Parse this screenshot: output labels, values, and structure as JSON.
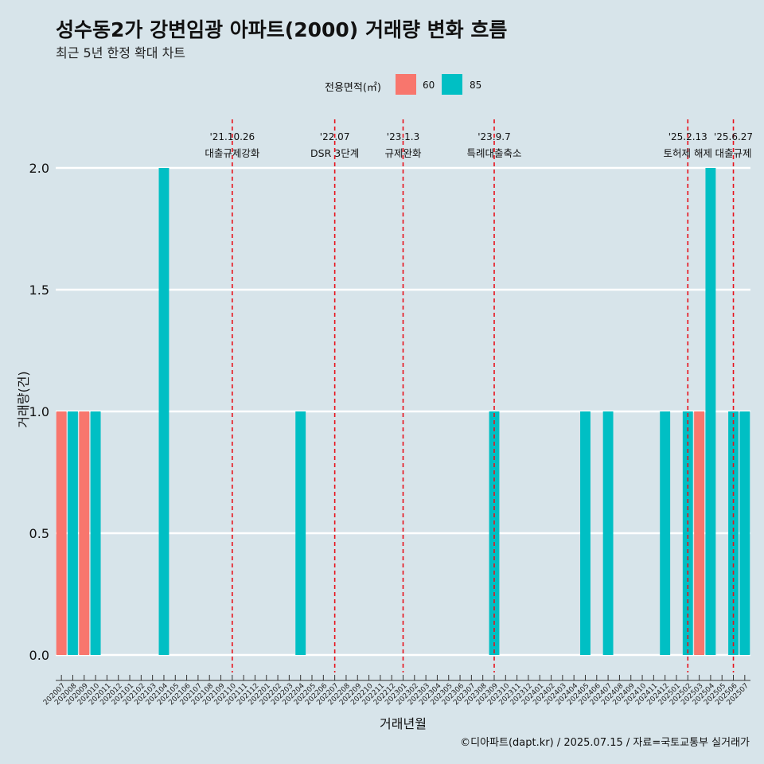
{
  "title": "성수동2가 강변임광 아파트(2000) 거래량 변화 흐름",
  "subtitle": "최근 5년 한정 확대 차트",
  "caption": "©디아파트(dapt.kr) / 2025.07.15 / 자료=국토교통부 실거래가",
  "legend": {
    "title": "전용면적(㎡)",
    "position": "top",
    "items": [
      {
        "label": "60",
        "color": "#F8766D"
      },
      {
        "label": "85",
        "color": "#00BFC4"
      }
    ]
  },
  "chart_data": {
    "type": "bar",
    "title": "성수동2가 강변임광 아파트(2000) 거래량 변화 흐름",
    "subtitle": "최근 5년 한정 확대 차트",
    "xlabel": "거래년월",
    "ylabel": "거래량(건)",
    "ylim": [
      0,
      2.0
    ],
    "yticks": [
      "0.0",
      "0.5",
      "1.0",
      "1.5",
      "2.0"
    ],
    "grid": "horizontal",
    "categories": [
      "202007",
      "202008",
      "202009",
      "202010",
      "202011",
      "202012",
      "202101",
      "202102",
      "202103",
      "202104",
      "202105",
      "202106",
      "202107",
      "202108",
      "202109",
      "202110",
      "202111",
      "202112",
      "202201",
      "202202",
      "202203",
      "202204",
      "202205",
      "202206",
      "202207",
      "202208",
      "202209",
      "202210",
      "202211",
      "202212",
      "202301",
      "202302",
      "202303",
      "202304",
      "202305",
      "202306",
      "202307",
      "202308",
      "202309",
      "202310",
      "202311",
      "202312",
      "202401",
      "202402",
      "202403",
      "202404",
      "202405",
      "202406",
      "202407",
      "202408",
      "202409",
      "202410",
      "202411",
      "202412",
      "202501",
      "202502",
      "202503",
      "202504",
      "202505",
      "202506",
      "202507"
    ],
    "series": [
      {
        "name": "60",
        "color": "#F8766D",
        "values": [
          {
            "x": "202007",
            "y": 1
          },
          {
            "x": "202009",
            "y": 1
          },
          {
            "x": "202503",
            "y": 1
          }
        ]
      },
      {
        "name": "85",
        "color": "#00BFC4",
        "values": [
          {
            "x": "202008",
            "y": 1
          },
          {
            "x": "202010",
            "y": 1
          },
          {
            "x": "202104",
            "y": 2
          },
          {
            "x": "202204",
            "y": 1
          },
          {
            "x": "202309",
            "y": 1
          },
          {
            "x": "202405",
            "y": 1
          },
          {
            "x": "202407",
            "y": 1
          },
          {
            "x": "202412",
            "y": 1
          },
          {
            "x": "202502",
            "y": 1
          },
          {
            "x": "202504",
            "y": 2
          },
          {
            "x": "202506",
            "y": 1
          },
          {
            "x": "202507",
            "y": 1
          }
        ]
      }
    ],
    "annotations": [
      {
        "x": "202110",
        "date": "'21.10.26",
        "label": "대출규제강화"
      },
      {
        "x": "202207",
        "date": "'22.07",
        "label": "DSR 3단계"
      },
      {
        "x": "202301",
        "date": "'23.1.3",
        "label": "규제완화"
      },
      {
        "x": "202309",
        "date": "'23.9.7",
        "label": "특례대출축소"
      },
      {
        "x": "202502",
        "date": "'25.2.13",
        "label": "토허제 해제"
      },
      {
        "x": "202506",
        "date": "'25.6.27",
        "label": "대출규제"
      }
    ]
  }
}
